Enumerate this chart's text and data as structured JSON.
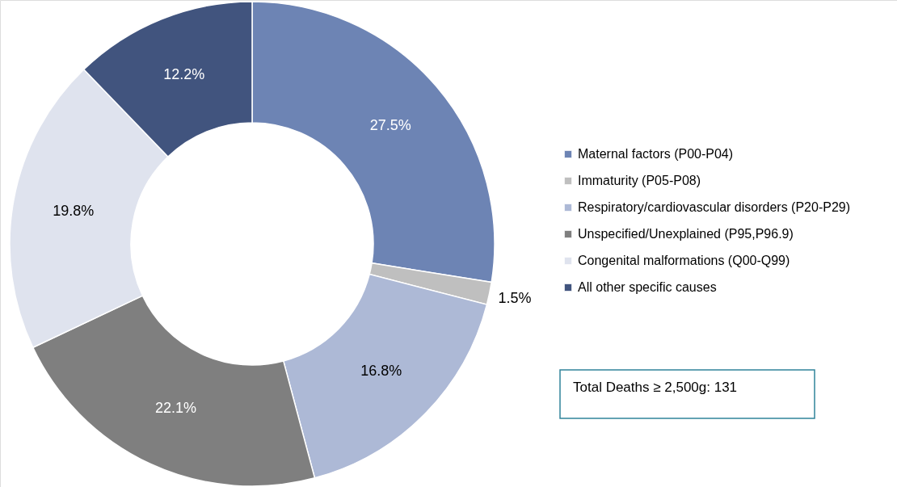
{
  "chart_data": {
    "type": "donut",
    "categories": [
      "Maternal factors (P00-P04)",
      "Immaturity (P05-P08)",
      "Respiratory/cardiovascular disorders (P20-P29)",
      "Unspecified/Unexplained (P95,P96.9)",
      "Congenital malformations (Q00-Q99)",
      "All other specific causes"
    ],
    "values": [
      27.5,
      1.5,
      16.8,
      22.1,
      19.8,
      12.2
    ],
    "value_labels": [
      "27.5%",
      "1.5%",
      "16.8%",
      "22.1%",
      "19.8%",
      "12.2%"
    ],
    "colors": [
      "#6d84b4",
      "#bfbfbf",
      "#adb9d6",
      "#7f7f7f",
      "#dfe3ee",
      "#41547e"
    ],
    "legend": "right",
    "annotations": [
      "Total Deaths ≥ 2,500g: 131"
    ]
  }
}
